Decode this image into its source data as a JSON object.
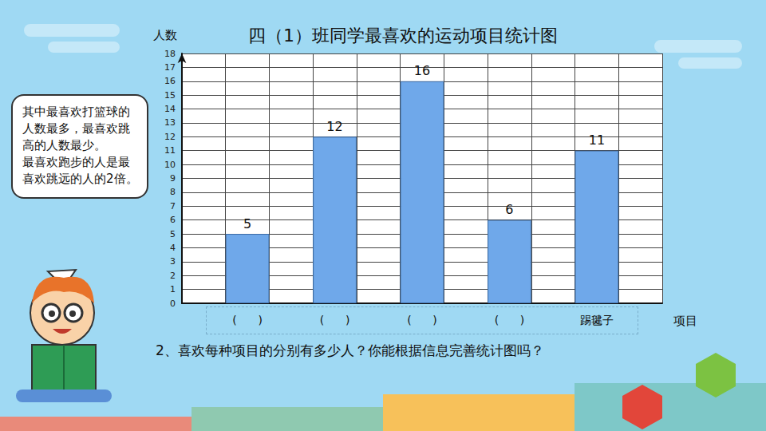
{
  "chart_data": {
    "type": "bar",
    "title": "四（1）班同学最喜欢的运动项目统计图",
    "x_label": "项目",
    "y_label": "人数",
    "categories": [
      null,
      "(      )",
      null,
      "(      )",
      null,
      "(      )",
      null,
      "(      )",
      null,
      "踢毽子",
      null
    ],
    "values": [
      null,
      5,
      null,
      12,
      null,
      16,
      null,
      6,
      null,
      11,
      null
    ],
    "color": "#6fa8ea",
    "ylim": [
      0,
      18
    ],
    "yticks": [
      0,
      1,
      2,
      3,
      4,
      5,
      6,
      7,
      8,
      9,
      10,
      11,
      12,
      13,
      14,
      15,
      16,
      17,
      18
    ],
    "grid": true,
    "data_labels": true,
    "annotations": {
      "speech_bubble": [
        "其中最喜欢打篮球的人数最多，最喜欢跳高的人数最少。",
        "最喜欢跑步的人是最喜欢跳远的人的2倍。"
      ],
      "question": "2、喜欢每种项目的分别有多少人？你能根据信息完善统计图吗？"
    }
  }
}
